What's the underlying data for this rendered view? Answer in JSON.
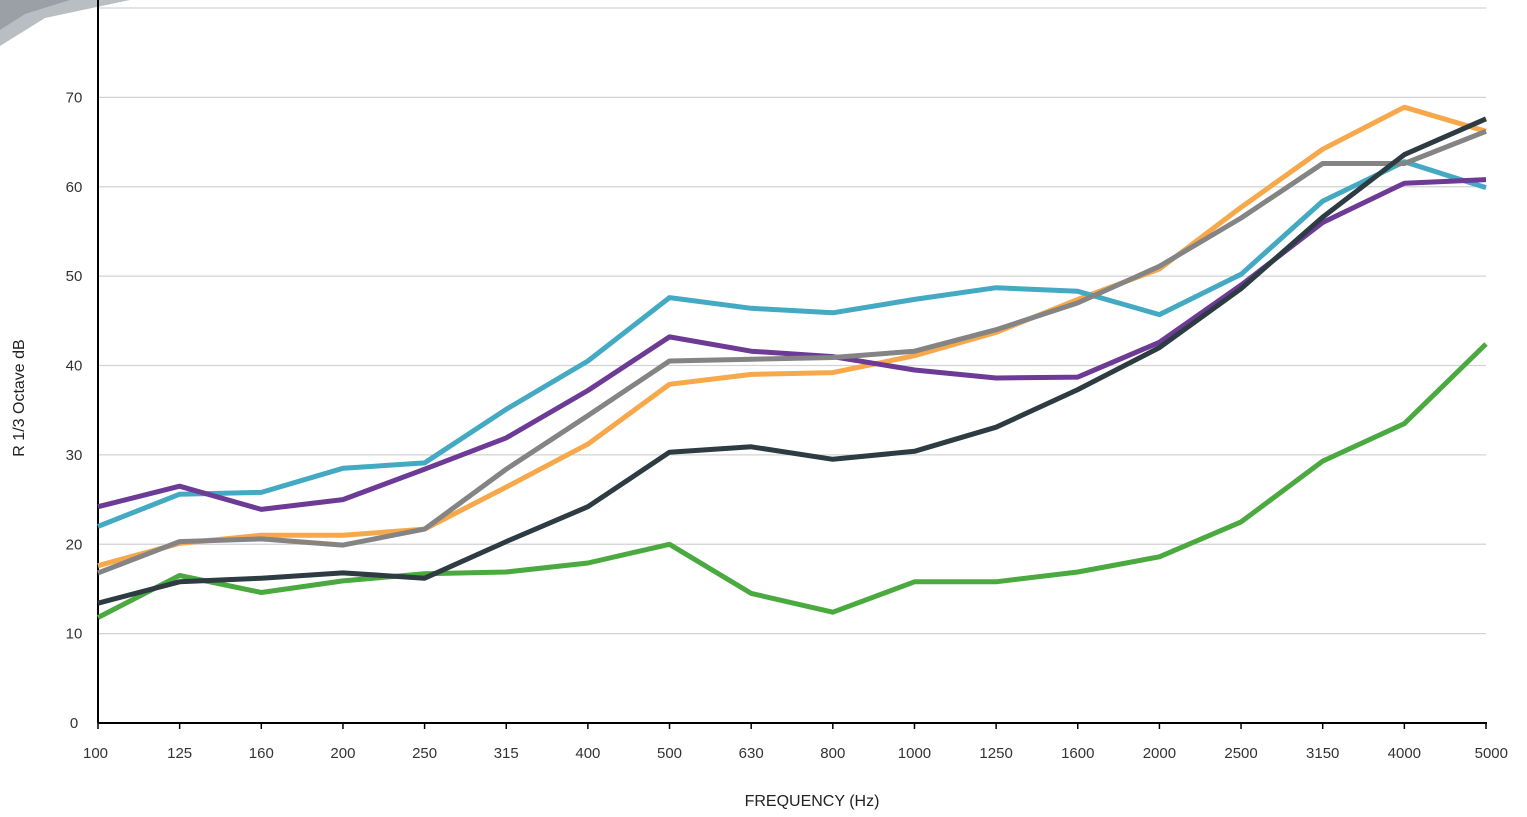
{
  "chart_data": {
    "type": "line",
    "xlabel": "FREQUENCY (Hz)",
    "ylabel": "R 1/3 Octave dB",
    "categories": [
      "100",
      "125",
      "160",
      "200",
      "250",
      "315",
      "400",
      "500",
      "630",
      "800",
      "1000",
      "1250",
      "1600",
      "2000",
      "2500",
      "3150",
      "4000",
      "5000"
    ],
    "ylim": [
      0,
      80
    ],
    "yticks": [
      0,
      10,
      20,
      30,
      40,
      50,
      60,
      70
    ],
    "grid": true,
    "series": [
      {
        "color": "#4aa93f",
        "values": [
          11.8,
          16.5,
          14.6,
          15.9,
          16.7,
          16.9,
          17.9,
          20.0,
          14.5,
          12.4,
          15.8,
          15.8,
          16.9,
          18.6,
          22.5,
          29.3,
          33.5,
          42.4
        ]
      },
      {
        "color": "#f6a84a",
        "values": [
          17.6,
          20.1,
          21.0,
          21.0,
          21.7,
          26.4,
          31.2,
          37.9,
          39.0,
          39.2,
          41.1,
          43.7,
          47.4,
          50.8,
          57.7,
          64.2,
          68.9,
          66.2
        ]
      },
      {
        "color": "#44a9c2",
        "values": [
          22.0,
          25.6,
          25.8,
          28.5,
          29.1,
          35.1,
          40.5,
          47.6,
          46.4,
          45.9,
          47.4,
          48.7,
          48.3,
          45.7,
          50.2,
          58.4,
          62.8,
          59.9
        ]
      },
      {
        "color": "#6d3a96",
        "values": [
          24.2,
          26.5,
          23.9,
          25.0,
          28.4,
          31.9,
          37.2,
          43.2,
          41.6,
          41.0,
          39.5,
          38.6,
          38.7,
          42.6,
          49.0,
          56.0,
          60.4,
          60.8
        ]
      },
      {
        "color": "#848484",
        "values": [
          16.8,
          20.3,
          20.6,
          19.9,
          21.7,
          28.4,
          34.4,
          40.5,
          40.7,
          40.9,
          41.6,
          44.0,
          47.0,
          51.1,
          56.5,
          62.6,
          62.6,
          66.2
        ]
      },
      {
        "color": "#2d3b42",
        "values": [
          13.4,
          15.8,
          16.2,
          16.8,
          16.2,
          20.3,
          24.2,
          30.3,
          30.9,
          29.5,
          30.4,
          33.1,
          37.3,
          42.0,
          48.6,
          56.6,
          63.6,
          67.6
        ]
      }
    ]
  }
}
